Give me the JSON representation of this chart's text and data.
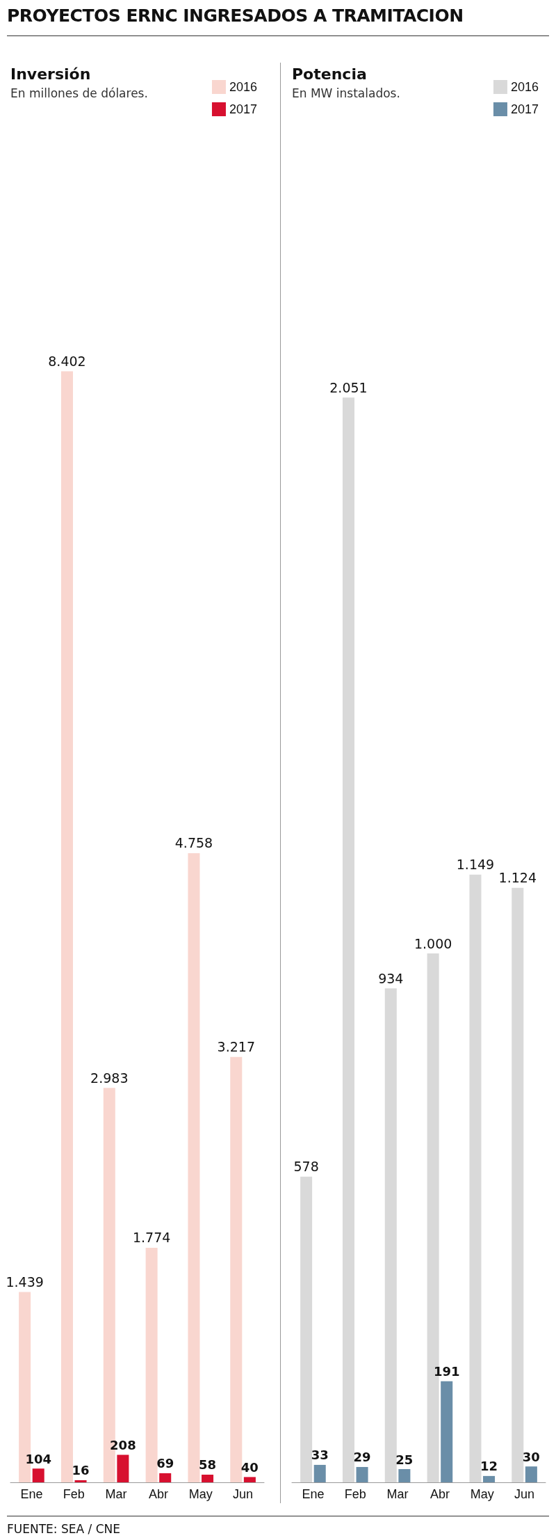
{
  "chart_data": [
    {
      "type": "bar",
      "title": "Inversión",
      "subtitle": "En millones de dólares.",
      "categories": [
        "Ene",
        "Feb",
        "Mar",
        "Abr",
        "May",
        "Jun"
      ],
      "series": [
        {
          "name": "2016",
          "color": "#f9d6cf",
          "values": [
            1439,
            8402,
            2983,
            1774,
            4758,
            3217
          ],
          "value_labels": [
            "1.439",
            "8.402",
            "2.983",
            "1.774",
            "4.758",
            "3.217"
          ]
        },
        {
          "name": "2017",
          "color": "#d7102f",
          "values": [
            104,
            16,
            208,
            69,
            58,
            40
          ],
          "value_labels": [
            "104",
            "16",
            "208",
            "69",
            "58",
            "40"
          ]
        }
      ],
      "legend": "top right",
      "annotations": [
        "PROYECTOS ERNC INGRESADOS A TRAMITACION"
      ]
    },
    {
      "type": "bar",
      "title": "Potencia",
      "subtitle": "En MW instalados.",
      "categories": [
        "Ene",
        "Feb",
        "Mar",
        "Abr",
        "May",
        "Jun"
      ],
      "series": [
        {
          "name": "2016",
          "color": "#d9d9d9",
          "values": [
            578,
            2051,
            934,
            1000,
            1149,
            1124
          ],
          "value_labels": [
            "578",
            "2.051",
            "934",
            "1.000",
            "1.149",
            "1.124"
          ]
        },
        {
          "name": "2017",
          "color": "#6a8ea8",
          "values": [
            33,
            29,
            25,
            191,
            12,
            30
          ],
          "value_labels": [
            "33",
            "29",
            "25",
            "191",
            "12",
            "30"
          ]
        }
      ],
      "legend": "top right",
      "annotations": [
        "FUENTE: SEA / CNE"
      ]
    }
  ]
}
